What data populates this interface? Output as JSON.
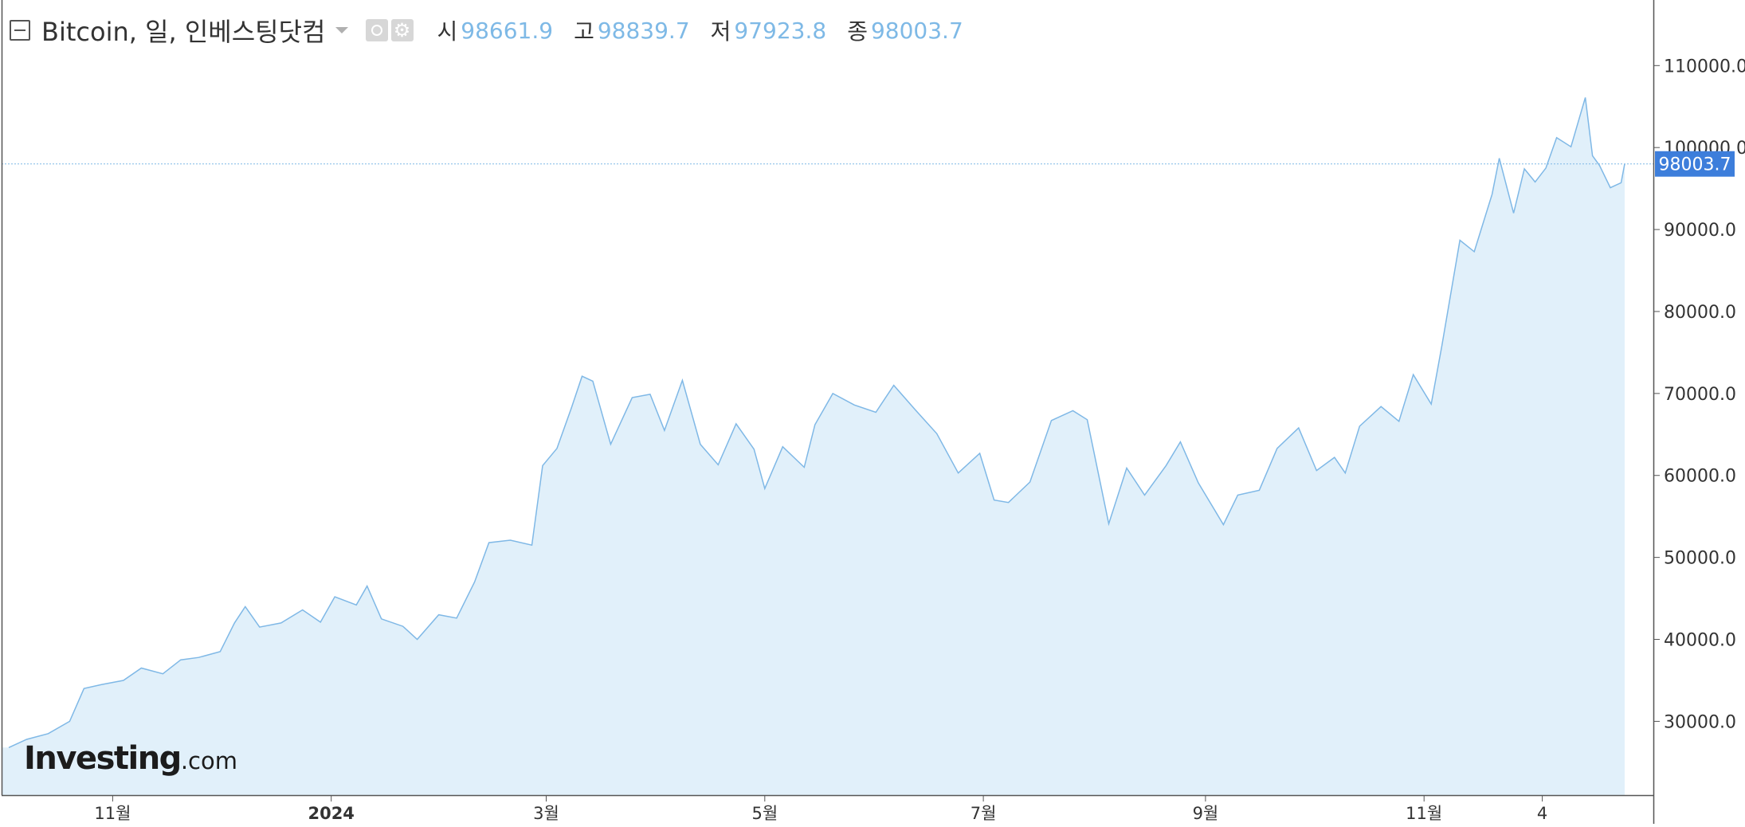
{
  "legend": {
    "title": "Bitcoin, 일, 인베스팅닷컴",
    "open_label": "시",
    "open_value": "98661.9",
    "high_label": "고",
    "high_value": "98839.7",
    "low_label": "저",
    "low_value": "97923.8",
    "close_label": "종",
    "close_value": "98003.7"
  },
  "watermark": {
    "brand": "Investing",
    "suffix": ".com"
  },
  "colors": {
    "line": "#7fb8e6",
    "area": "#e1f0fa",
    "price_tag": "#3d7edb",
    "axis": "#555555"
  },
  "chart_data": {
    "type": "area",
    "title": "",
    "xlabel": "",
    "ylabel": "",
    "ylim": [
      21000,
      118000
    ],
    "grid": false,
    "y_ticks": [
      "30000.0",
      "40000.0",
      "50000.0",
      "60000.0",
      "70000.0",
      "80000.0",
      "90000.0",
      "100000.0",
      "110000.0"
    ],
    "x_ticks": [
      {
        "label": "11월",
        "date": "2023-11-01"
      },
      {
        "label": "2024",
        "date": "2024-01-01"
      },
      {
        "label": "3월",
        "date": "2024-03-01"
      },
      {
        "label": "5월",
        "date": "2024-05-01"
      },
      {
        "label": "7월",
        "date": "2024-07-01"
      },
      {
        "label": "9월",
        "date": "2024-09-01"
      },
      {
        "label": "11월",
        "date": "2024-11-01"
      },
      {
        "label": "4",
        "date": "2024-12-04"
      }
    ],
    "last_price": {
      "value": 98003.7,
      "label": "98003.7"
    },
    "series": [
      {
        "points": [
          [
            "2023-10-03",
            26800
          ],
          [
            "2023-10-08",
            27800
          ],
          [
            "2023-10-14",
            28500
          ],
          [
            "2023-10-20",
            30000
          ],
          [
            "2023-10-24",
            34000
          ],
          [
            "2023-10-29",
            34500
          ],
          [
            "2023-11-04",
            35000
          ],
          [
            "2023-11-09",
            36500
          ],
          [
            "2023-11-15",
            35800
          ],
          [
            "2023-11-20",
            37500
          ],
          [
            "2023-11-25",
            37800
          ],
          [
            "2023-12-01",
            38500
          ],
          [
            "2023-12-05",
            42000
          ],
          [
            "2023-12-08",
            44000
          ],
          [
            "2023-12-12",
            41500
          ],
          [
            "2023-12-18",
            42000
          ],
          [
            "2023-12-24",
            43600
          ],
          [
            "2023-12-29",
            42100
          ],
          [
            "2024-01-02",
            45200
          ],
          [
            "2024-01-08",
            44200
          ],
          [
            "2024-01-11",
            46500
          ],
          [
            "2024-01-15",
            42500
          ],
          [
            "2024-01-21",
            41600
          ],
          [
            "2024-01-25",
            40000
          ],
          [
            "2024-01-31",
            43000
          ],
          [
            "2024-02-05",
            42600
          ],
          [
            "2024-02-10",
            47000
          ],
          [
            "2024-02-14",
            51800
          ],
          [
            "2024-02-20",
            52100
          ],
          [
            "2024-02-26",
            51500
          ],
          [
            "2024-02-29",
            61200
          ],
          [
            "2024-03-04",
            63300
          ],
          [
            "2024-03-08",
            68200
          ],
          [
            "2024-03-11",
            72100
          ],
          [
            "2024-03-14",
            71500
          ],
          [
            "2024-03-19",
            63800
          ],
          [
            "2024-03-25",
            69500
          ],
          [
            "2024-03-30",
            69900
          ],
          [
            "2024-04-03",
            65500
          ],
          [
            "2024-04-08",
            71600
          ],
          [
            "2024-04-13",
            63800
          ],
          [
            "2024-04-18",
            61300
          ],
          [
            "2024-04-23",
            66300
          ],
          [
            "2024-04-28",
            63200
          ],
          [
            "2024-05-01",
            58400
          ],
          [
            "2024-05-06",
            63500
          ],
          [
            "2024-05-12",
            61000
          ],
          [
            "2024-05-15",
            66200
          ],
          [
            "2024-05-20",
            70000
          ],
          [
            "2024-05-26",
            68600
          ],
          [
            "2024-06-01",
            67700
          ],
          [
            "2024-06-06",
            71000
          ],
          [
            "2024-06-12",
            68000
          ],
          [
            "2024-06-18",
            65100
          ],
          [
            "2024-06-24",
            60300
          ],
          [
            "2024-06-30",
            62700
          ],
          [
            "2024-07-04",
            57000
          ],
          [
            "2024-07-08",
            56700
          ],
          [
            "2024-07-14",
            59200
          ],
          [
            "2024-07-20",
            66700
          ],
          [
            "2024-07-26",
            67900
          ],
          [
            "2024-07-30",
            66800
          ],
          [
            "2024-08-05",
            54100
          ],
          [
            "2024-08-10",
            60900
          ],
          [
            "2024-08-15",
            57600
          ],
          [
            "2024-08-21",
            61200
          ],
          [
            "2024-08-25",
            64100
          ],
          [
            "2024-08-30",
            59100
          ],
          [
            "2024-09-06",
            54000
          ],
          [
            "2024-09-10",
            57600
          ],
          [
            "2024-09-16",
            58200
          ],
          [
            "2024-09-21",
            63300
          ],
          [
            "2024-09-27",
            65800
          ],
          [
            "2024-10-02",
            60600
          ],
          [
            "2024-10-07",
            62200
          ],
          [
            "2024-10-10",
            60300
          ],
          [
            "2024-10-14",
            66000
          ],
          [
            "2024-10-20",
            68400
          ],
          [
            "2024-10-25",
            66600
          ],
          [
            "2024-10-29",
            72300
          ],
          [
            "2024-11-03",
            68700
          ],
          [
            "2024-11-06",
            75900
          ],
          [
            "2024-11-11",
            88700
          ],
          [
            "2024-11-15",
            87300
          ],
          [
            "2024-11-20",
            94300
          ],
          [
            "2024-11-22",
            98700
          ],
          [
            "2024-11-26",
            92000
          ],
          [
            "2024-11-29",
            97400
          ],
          [
            "2024-12-02",
            95800
          ],
          [
            "2024-12-05",
            97500
          ],
          [
            "2024-12-08",
            101200
          ],
          [
            "2024-12-12",
            100100
          ],
          [
            "2024-12-16",
            106100
          ],
          [
            "2024-12-18",
            99000
          ],
          [
            "2024-12-20",
            97800
          ],
          [
            "2024-12-23",
            95100
          ],
          [
            "2024-12-26",
            95700
          ],
          [
            "2024-12-27",
            98003.7
          ]
        ]
      }
    ]
  }
}
